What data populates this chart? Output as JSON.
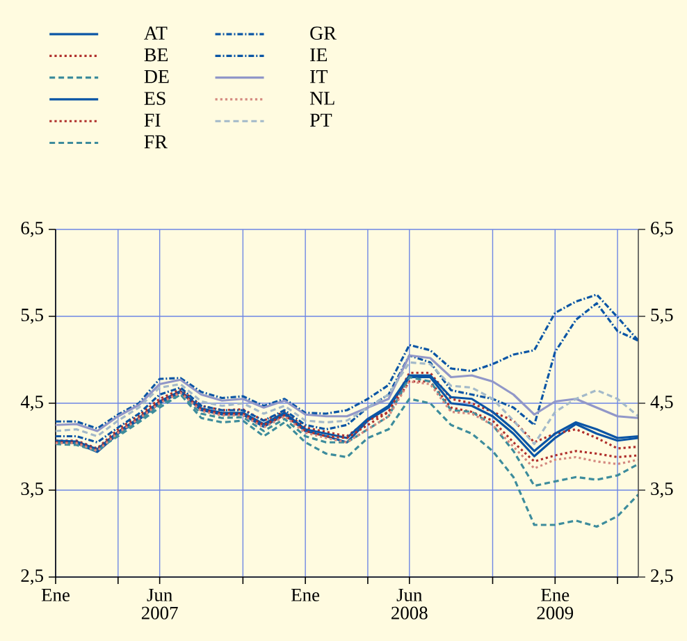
{
  "chart_data": {
    "type": "line",
    "x": [
      "2007-01",
      "2007-02",
      "2007-03",
      "2007-04",
      "2007-05",
      "2007-06",
      "2007-07",
      "2007-08",
      "2007-09",
      "2007-10",
      "2007-11",
      "2007-12",
      "2008-01",
      "2008-02",
      "2008-03",
      "2008-04",
      "2008-05",
      "2008-06",
      "2008-07",
      "2008-08",
      "2008-09",
      "2008-10",
      "2008-11",
      "2008-12",
      "2009-01",
      "2009-02",
      "2009-03",
      "2009-04",
      "2009-05"
    ],
    "series": [
      {
        "name": "AT",
        "color": "#0a55a5",
        "line_style": "solid",
        "values": [
          4.05,
          4.04,
          3.94,
          4.15,
          4.31,
          4.5,
          4.63,
          4.42,
          4.37,
          4.37,
          4.23,
          4.37,
          4.18,
          4.12,
          4.05,
          4.3,
          4.45,
          4.8,
          4.8,
          4.5,
          4.47,
          4.35,
          4.15,
          3.89,
          4.1,
          4.26,
          4.15,
          4.07,
          4.1
        ]
      },
      {
        "name": "BE",
        "color": "#b0302c",
        "line_style": "dotted",
        "values": [
          4.07,
          4.07,
          3.98,
          4.2,
          4.36,
          4.55,
          4.66,
          4.47,
          4.42,
          4.43,
          4.3,
          4.4,
          4.22,
          4.17,
          4.12,
          4.3,
          4.4,
          4.85,
          4.85,
          4.55,
          4.5,
          4.4,
          4.3,
          4.05,
          4.15,
          4.2,
          4.1,
          3.98,
          4.0
        ]
      },
      {
        "name": "DE",
        "color": "#3d8c9c",
        "line_style": "dashed",
        "values": [
          4.05,
          4.05,
          3.97,
          4.12,
          4.28,
          4.45,
          4.6,
          4.33,
          4.28,
          4.3,
          4.12,
          4.28,
          4.05,
          3.92,
          3.88,
          4.1,
          4.2,
          4.55,
          4.5,
          4.25,
          4.15,
          3.95,
          3.65,
          3.1,
          3.1,
          3.15,
          3.08,
          3.2,
          3.45
        ]
      },
      {
        "name": "ES",
        "color": "#0a55a5",
        "line_style": "solid",
        "values": [
          4.07,
          4.06,
          3.97,
          4.17,
          4.33,
          4.52,
          4.64,
          4.44,
          4.39,
          4.39,
          4.26,
          4.39,
          4.2,
          4.15,
          4.1,
          4.32,
          4.47,
          4.82,
          4.82,
          4.57,
          4.55,
          4.4,
          4.2,
          3.95,
          4.15,
          4.28,
          4.2,
          4.1,
          4.12
        ]
      },
      {
        "name": "FI",
        "color": "#b0302c",
        "line_style": "dotted",
        "values": [
          4.05,
          4.05,
          3.96,
          4.17,
          4.33,
          4.52,
          4.63,
          4.43,
          4.38,
          4.38,
          4.25,
          4.36,
          4.18,
          4.12,
          4.1,
          4.25,
          4.4,
          4.75,
          4.75,
          4.45,
          4.4,
          4.3,
          4.05,
          3.83,
          3.9,
          3.95,
          3.92,
          3.88,
          3.9
        ]
      },
      {
        "name": "FR",
        "color": "#3d8c9c",
        "line_style": "dashed",
        "values": [
          4.03,
          4.02,
          3.95,
          4.14,
          4.3,
          4.48,
          4.6,
          4.38,
          4.33,
          4.34,
          4.18,
          4.32,
          4.12,
          4.05,
          4.05,
          4.2,
          4.35,
          4.8,
          4.75,
          4.42,
          4.4,
          4.25,
          3.95,
          3.55,
          3.6,
          3.65,
          3.62,
          3.67,
          3.8
        ]
      },
      {
        "name": "GR",
        "color": "#0a55a5",
        "line_style": "dashdot",
        "values": [
          4.29,
          4.29,
          4.21,
          4.37,
          4.5,
          4.78,
          4.79,
          4.63,
          4.56,
          4.58,
          4.47,
          4.55,
          4.39,
          4.38,
          4.42,
          4.55,
          4.71,
          5.17,
          5.11,
          4.9,
          4.87,
          4.95,
          5.06,
          5.11,
          5.54,
          5.67,
          5.75,
          5.49,
          5.22
        ]
      },
      {
        "name": "IE",
        "color": "#0a55a5",
        "line_style": "dashdot",
        "values": [
          4.12,
          4.12,
          4.05,
          4.22,
          4.38,
          4.6,
          4.68,
          4.47,
          4.42,
          4.42,
          4.3,
          4.42,
          4.25,
          4.2,
          4.25,
          4.45,
          4.6,
          5.05,
          4.97,
          4.65,
          4.6,
          4.55,
          4.45,
          4.25,
          5.09,
          5.46,
          5.65,
          5.33,
          5.22
        ]
      },
      {
        "name": "IT",
        "color": "#9197c8",
        "line_style": "solid",
        "values": [
          4.25,
          4.26,
          4.18,
          4.35,
          4.48,
          4.72,
          4.77,
          4.6,
          4.53,
          4.55,
          4.45,
          4.53,
          4.37,
          4.35,
          4.35,
          4.45,
          4.55,
          5.05,
          5.02,
          4.8,
          4.82,
          4.75,
          4.6,
          4.37,
          4.52,
          4.55,
          4.45,
          4.35,
          4.33
        ]
      },
      {
        "name": "NL",
        "color": "#d4897f",
        "line_style": "dotted",
        "values": [
          4.04,
          4.04,
          3.95,
          4.16,
          4.32,
          4.5,
          4.62,
          4.41,
          4.36,
          4.36,
          4.22,
          4.35,
          4.16,
          4.1,
          4.05,
          4.2,
          4.35,
          4.75,
          4.72,
          4.4,
          4.38,
          4.25,
          4.0,
          3.75,
          3.85,
          3.88,
          3.83,
          3.8,
          3.85
        ]
      },
      {
        "name": "PT",
        "color": "#a3b9c9",
        "line_style": "dashed",
        "values": [
          4.18,
          4.2,
          4.12,
          4.3,
          4.45,
          4.68,
          4.72,
          4.52,
          4.47,
          4.5,
          4.38,
          4.47,
          4.3,
          4.28,
          4.3,
          4.45,
          4.6,
          4.97,
          4.95,
          4.7,
          4.68,
          4.55,
          4.3,
          4.03,
          4.4,
          4.55,
          4.65,
          4.55,
          4.35
        ]
      }
    ],
    "xlim": [
      "2007-01",
      "2009-05"
    ],
    "xticks": [
      {
        "value": "2007-01",
        "label": "Ene"
      },
      {
        "value": "2007-04",
        "label": null
      },
      {
        "value": "2007-06",
        "label": "Jun 2007"
      },
      {
        "value": "2007-10",
        "label": null
      },
      {
        "value": "2008-01",
        "label": "Ene"
      },
      {
        "value": "2008-04",
        "label": null
      },
      {
        "value": "2008-06",
        "label": "Jun 2008"
      },
      {
        "value": "2008-10",
        "label": null
      },
      {
        "value": "2009-01",
        "label": "Ene 2009"
      },
      {
        "value": "2009-04",
        "label": null
      }
    ],
    "ylim": [
      2.5,
      6.5
    ],
    "yticks": [
      {
        "value": 2.5,
        "label": "2,5"
      },
      {
        "value": 3.5,
        "label": "3,5"
      },
      {
        "value": 4.5,
        "label": "4,5"
      },
      {
        "value": 5.5,
        "label": "5,5"
      },
      {
        "value": 6.5,
        "label": "6,5"
      }
    ],
    "y2lim": [
      2.5,
      6.5
    ],
    "y2ticks": [
      {
        "value": 2.5,
        "label": "2,5"
      },
      {
        "value": 3.5,
        "label": "3,5"
      },
      {
        "value": 4.5,
        "label": "4,5"
      },
      {
        "value": 5.5,
        "label": "5,5"
      },
      {
        "value": 6.5,
        "label": "6,5"
      }
    ],
    "grid": true,
    "legend": "top left"
  }
}
